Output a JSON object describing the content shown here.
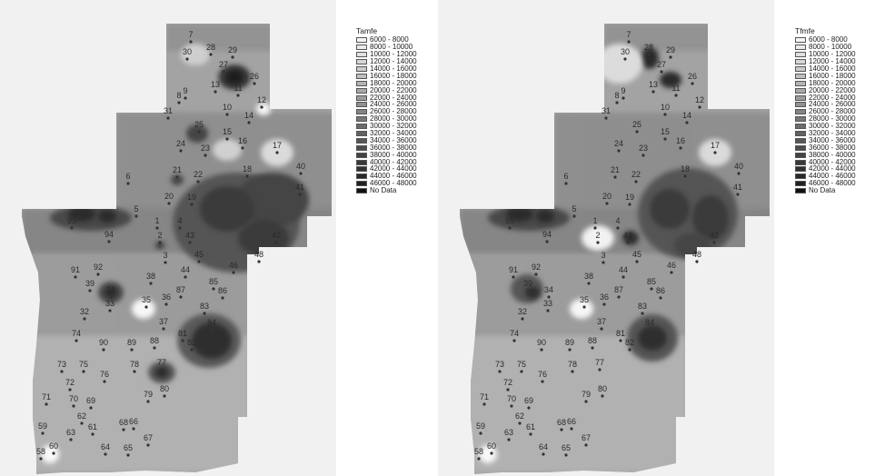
{
  "maps": [
    {
      "legend_title": "Tamfe",
      "legend_items": [
        {
          "label": "6000 - 8000",
          "color": "#f4f4f4"
        },
        {
          "label": "8000 - 10000",
          "color": "#eaeaea"
        },
        {
          "label": "10000 - 12000",
          "color": "#e0e0e0"
        },
        {
          "label": "12000 - 14000",
          "color": "#d6d6d6"
        },
        {
          "label": "14000 - 16000",
          "color": "#cbcbcb"
        },
        {
          "label": "16000 - 18000",
          "color": "#c0c0c0"
        },
        {
          "label": "18000 - 20000",
          "color": "#b4b4b4"
        },
        {
          "label": "20000 - 22000",
          "color": "#a8a8a8"
        },
        {
          "label": "22000 - 24000",
          "color": "#9c9c9c"
        },
        {
          "label": "24000 - 26000",
          "color": "#909090"
        },
        {
          "label": "26000 - 28000",
          "color": "#848484"
        },
        {
          "label": "28000 - 30000",
          "color": "#787878"
        },
        {
          "label": "30000 - 32000",
          "color": "#6c6c6c"
        },
        {
          "label": "32000 - 34000",
          "color": "#616161"
        },
        {
          "label": "34000 - 36000",
          "color": "#565656"
        },
        {
          "label": "36000 - 38000",
          "color": "#4c4c4c"
        },
        {
          "label": "38000 - 40000",
          "color": "#424242"
        },
        {
          "label": "40000 - 42000",
          "color": "#393939"
        },
        {
          "label": "42000 - 44000",
          "color": "#303030"
        },
        {
          "label": "44000 - 46000",
          "color": "#282828"
        },
        {
          "label": "46000 - 48000",
          "color": "#202020"
        },
        {
          "label": "No Data",
          "color": "#111111"
        }
      ]
    },
    {
      "legend_title": "Tfmfe",
      "legend_items": [
        {
          "label": "6000 - 8000",
          "color": "#f4f4f4"
        },
        {
          "label": "8000 - 10000",
          "color": "#eaeaea"
        },
        {
          "label": "10000 - 12000",
          "color": "#e0e0e0"
        },
        {
          "label": "12000 - 14000",
          "color": "#d6d6d6"
        },
        {
          "label": "14000 - 16000",
          "color": "#cbcbcb"
        },
        {
          "label": "16000 - 18000",
          "color": "#c0c0c0"
        },
        {
          "label": "18000 - 20000",
          "color": "#b4b4b4"
        },
        {
          "label": "20000 - 22000",
          "color": "#a8a8a8"
        },
        {
          "label": "22000 - 24000",
          "color": "#9c9c9c"
        },
        {
          "label": "24000 - 26000",
          "color": "#909090"
        },
        {
          "label": "26000 - 28000",
          "color": "#848484"
        },
        {
          "label": "28000 - 30000",
          "color": "#787878"
        },
        {
          "label": "30000 - 32000",
          "color": "#6c6c6c"
        },
        {
          "label": "32000 - 34000",
          "color": "#616161"
        },
        {
          "label": "34000 - 36000",
          "color": "#565656"
        },
        {
          "label": "36000 - 38000",
          "color": "#4c4c4c"
        },
        {
          "label": "38000 - 40000",
          "color": "#424242"
        },
        {
          "label": "40000 - 42000",
          "color": "#393939"
        },
        {
          "label": "42000 - 44000",
          "color": "#303030"
        },
        {
          "label": "44000 - 46000",
          "color": "#282828"
        },
        {
          "label": "46000 - 48000",
          "color": "#202020"
        },
        {
          "label": "No Data",
          "color": "#111111"
        }
      ]
    }
  ],
  "station_labels": [
    "1",
    "2",
    "3",
    "4",
    "5",
    "6",
    "7",
    "8",
    "9",
    "10",
    "11",
    "12",
    "13",
    "14",
    "15",
    "16",
    "17",
    "18",
    "19",
    "20",
    "21",
    "22",
    "23",
    "24",
    "25",
    "26",
    "27",
    "28",
    "29",
    "30",
    "31",
    "33",
    "34",
    "35",
    "36",
    "37",
    "38",
    "39",
    "40",
    "41",
    "42",
    "43",
    "44",
    "45",
    "46",
    "48",
    "58",
    "59",
    "60",
    "61",
    "62",
    "63",
    "64",
    "65",
    "66",
    "67",
    "68",
    "69",
    "70",
    "71",
    "72",
    "73",
    "74",
    "75",
    "76",
    "77",
    "78",
    "79",
    "80",
    "81",
    "82",
    "83",
    "84",
    "85",
    "86",
    "87",
    "88",
    "89",
    "90",
    "91",
    "92",
    "94",
    "95",
    "32"
  ]
}
